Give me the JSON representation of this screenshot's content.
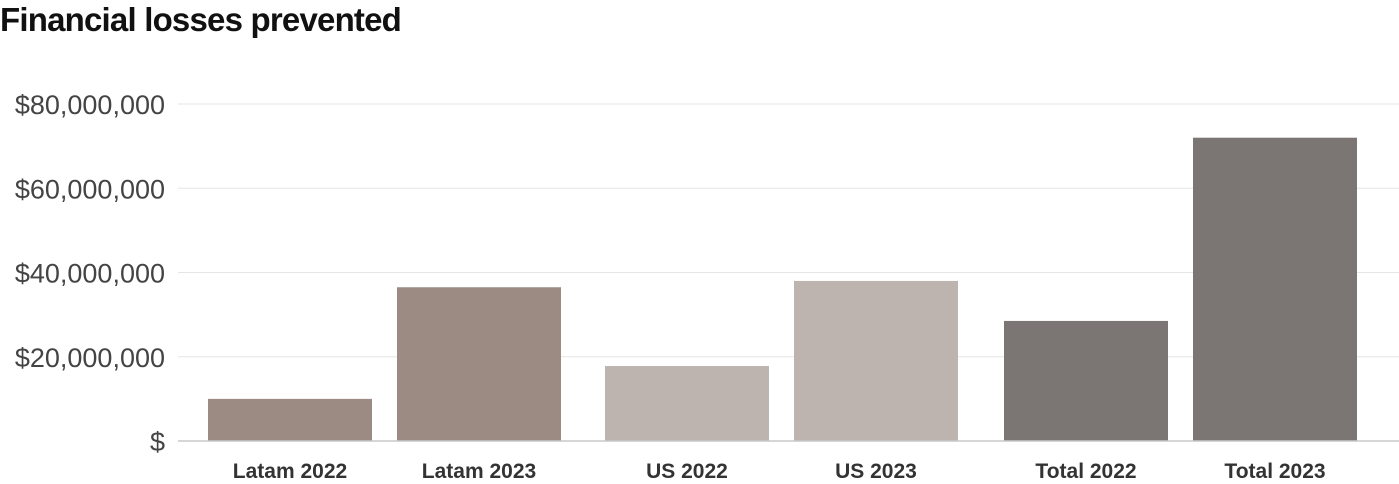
{
  "chart_data": {
    "type": "bar",
    "title": "Financial losses prevented",
    "xlabel": "",
    "ylabel": "",
    "categories": [
      "Latam 2022",
      "Latam 2023",
      "US 2022",
      "US 2023",
      "Total 2022",
      "Total 2023"
    ],
    "values": [
      10000000,
      36500000,
      17800000,
      38000000,
      28500000,
      72000000
    ],
    "bar_colors": [
      "#9b8b83",
      "#9b8b83",
      "#bdb3af",
      "#bdb3af",
      "#7b7673",
      "#7b7673"
    ],
    "ylim": [
      0,
      80000000
    ],
    "yticks": [
      0,
      20000000,
      40000000,
      60000000,
      80000000
    ],
    "ytick_labels": [
      "$",
      "$20,000,000",
      "$40,000,000",
      "$60,000,000",
      "$80,000,000"
    ],
    "grid": true,
    "legend": "none"
  }
}
